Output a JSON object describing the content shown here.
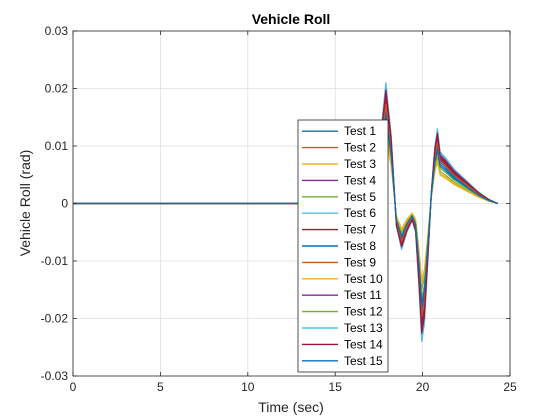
{
  "chart_data": {
    "type": "line",
    "title": "Vehicle Roll",
    "xlabel": "Time (sec)",
    "ylabel": "Vehicle Roll (rad)",
    "xlim": [
      0,
      25
    ],
    "ylim": [
      -0.03,
      0.03
    ],
    "xticks": [
      0,
      5,
      10,
      15,
      20,
      25
    ],
    "yticks": [
      -0.03,
      -0.02,
      -0.01,
      0,
      0.01,
      0.02,
      0.03
    ],
    "xtick_labels": [
      "0",
      "5",
      "10",
      "15",
      "20",
      "25"
    ],
    "ytick_labels": [
      "-0.03",
      "-0.02",
      "-0.01",
      "0",
      "0.01",
      "0.02",
      "0.03"
    ],
    "grid": true,
    "legend_position": "lower-right",
    "series": [
      {
        "name": "Test  1",
        "color": "#0072BD",
        "scale": 0.8
      },
      {
        "name": "Test  2",
        "color": "#D95319",
        "scale": 0.9
      },
      {
        "name": "Test  3",
        "color": "#EDB120",
        "scale": 0.55
      },
      {
        "name": "Test  4",
        "color": "#7E2F8E",
        "scale": 0.85
      },
      {
        "name": "Test  5",
        "color": "#77AC30",
        "scale": 0.62
      },
      {
        "name": "Test  6",
        "color": "#4DBEEE",
        "scale": 0.98
      },
      {
        "name": "Test  7",
        "color": "#A2142F",
        "scale": 0.88
      },
      {
        "name": "Test  8",
        "color": "#0072BD",
        "scale": 0.76
      },
      {
        "name": "Test  9",
        "color": "#D95319",
        "scale": 0.82
      },
      {
        "name": "Test 10",
        "color": "#EDB120",
        "scale": 0.58
      },
      {
        "name": "Test 11",
        "color": "#7E2F8E",
        "scale": 0.92
      },
      {
        "name": "Test 12",
        "color": "#77AC30",
        "scale": 0.68
      },
      {
        "name": "Test 13",
        "color": "#4DBEEE",
        "scale": 1.0
      },
      {
        "name": "Test 14",
        "color": "#A2142F",
        "scale": 0.94
      },
      {
        "name": "Test 15",
        "color": "#0072BD",
        "scale": 0.72
      }
    ],
    "base_waveform": {
      "x": [
        0,
        13,
        16.5,
        17.2,
        17.6,
        17.9,
        18.2,
        18.5,
        18.8,
        19.1,
        19.4,
        19.6,
        19.8,
        19.95,
        20.1,
        20.3,
        20.5,
        20.7,
        20.85,
        21.0,
        21.3,
        21.8,
        22.5,
        23.2,
        23.8,
        24.3
      ],
      "y": [
        0,
        0,
        0,
        0.003,
        0.012,
        0.021,
        0.012,
        -0.004,
        -0.008,
        -0.005,
        -0.003,
        -0.005,
        -0.015,
        -0.024,
        -0.021,
        -0.01,
        0.002,
        0.01,
        0.013,
        0.009,
        0.008,
        0.006,
        0.004,
        0.002,
        0.0007,
        0
      ]
    }
  }
}
